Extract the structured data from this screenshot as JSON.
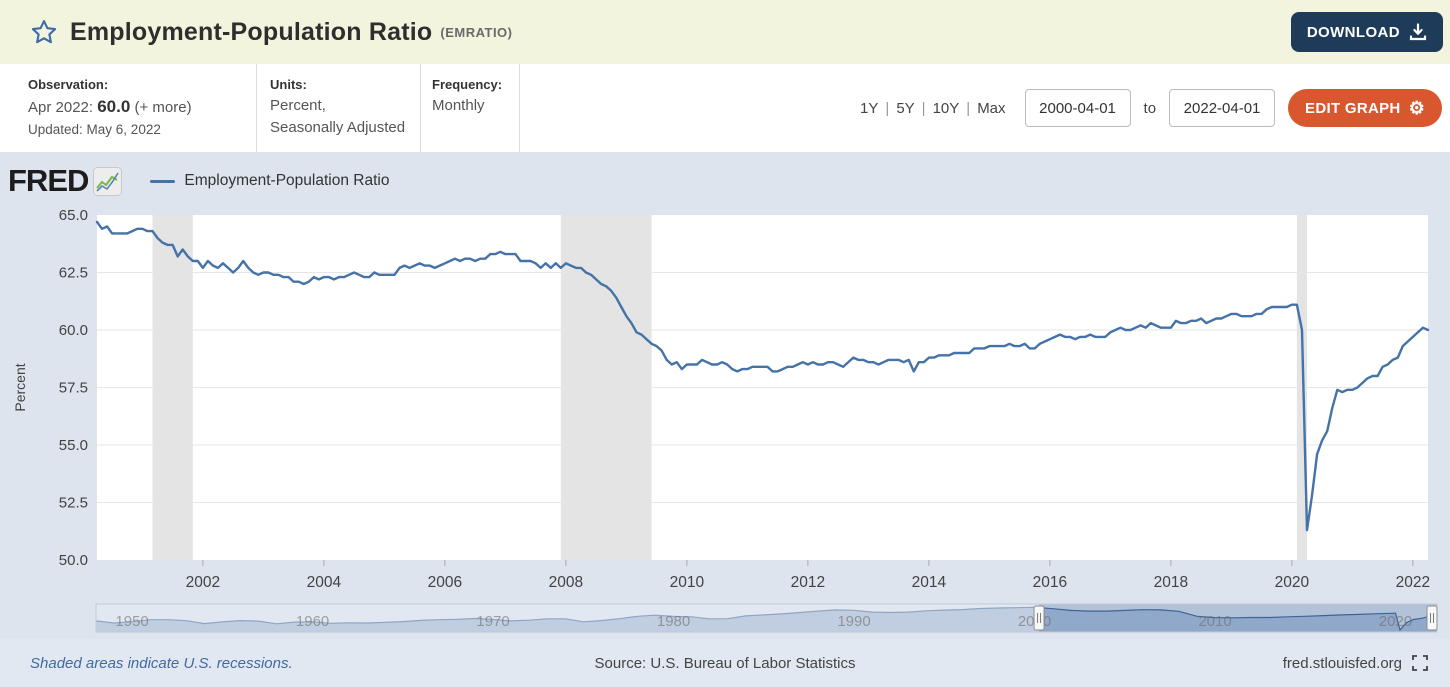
{
  "header": {
    "title": "Employment-Population Ratio",
    "series_code": "(EMRATIO)",
    "download_label": "DOWNLOAD"
  },
  "meta": {
    "observation": {
      "label": "Observation:",
      "date": "Apr 2022:",
      "value": "60.0",
      "more": "(+ more)",
      "updated": "Updated: May 6, 2022"
    },
    "units": {
      "label": "Units:",
      "line1": "Percent,",
      "line2": "Seasonally Adjusted"
    },
    "frequency": {
      "label": "Frequency:",
      "value": "Monthly"
    },
    "ranges": [
      "1Y",
      "5Y",
      "10Y",
      "Max"
    ],
    "range_separator": "|",
    "date_from": "2000-04-01",
    "to_label": "to",
    "date_to": "2022-04-01",
    "edit_graph_label": "EDIT GRAPH"
  },
  "brand": {
    "logo": "FRED",
    "legend_label": "Employment-Population Ratio"
  },
  "footer": {
    "note": "Shaded areas indicate U.S. recessions.",
    "source": "Source: U.S. Bureau of Labor Statistics",
    "site": "fred.stlouisfed.org"
  },
  "colors": {
    "header_bg": "#f2f4de",
    "download_navy": "#1e3c59",
    "edit_orange": "#d9572e",
    "chart_bg": "#dde4ee",
    "plot_bg": "#ffffff",
    "gridline": "#e6e6e6",
    "recession": "#e4e4e4",
    "series_line": "#4572a7",
    "axis_text": "#424242",
    "minimap_bg": "#cdd8e7",
    "minimap_selection_bg": "#b2c2d9",
    "minimap_area": "#8aa3c6",
    "minimap_line": "#3f6498"
  },
  "chart_data": {
    "type": "line",
    "title": "Employment-Population Ratio",
    "ylabel": "Percent",
    "ylim": [
      50.0,
      65.0
    ],
    "yticks": [
      65.0,
      62.5,
      60.0,
      57.5,
      55.0,
      52.5,
      50.0
    ],
    "xticks": [
      2002,
      2004,
      2006,
      2008,
      2010,
      2012,
      2014,
      2016,
      2018,
      2020,
      2022
    ],
    "x_range": [
      2000.25,
      2022.25
    ],
    "frequency": "monthly",
    "first_observation": "2000-04",
    "last_observation": "2022-04",
    "values": [
      64.7,
      64.4,
      64.5,
      64.2,
      64.2,
      64.2,
      64.2,
      64.3,
      64.4,
      64.4,
      64.3,
      64.3,
      64.0,
      63.8,
      63.7,
      63.7,
      63.2,
      63.5,
      63.2,
      63.0,
      63.0,
      62.7,
      63.0,
      62.8,
      62.7,
      62.9,
      62.7,
      62.5,
      62.7,
      63.0,
      62.7,
      62.5,
      62.4,
      62.5,
      62.5,
      62.4,
      62.4,
      62.3,
      62.3,
      62.1,
      62.1,
      62.0,
      62.1,
      62.3,
      62.2,
      62.3,
      62.3,
      62.2,
      62.3,
      62.3,
      62.4,
      62.5,
      62.4,
      62.3,
      62.3,
      62.5,
      62.4,
      62.4,
      62.4,
      62.4,
      62.7,
      62.8,
      62.7,
      62.8,
      62.9,
      62.8,
      62.8,
      62.7,
      62.8,
      62.9,
      63.0,
      63.1,
      63.0,
      63.1,
      63.1,
      63.0,
      63.1,
      63.1,
      63.3,
      63.3,
      63.4,
      63.3,
      63.3,
      63.3,
      63.0,
      63.0,
      63.0,
      62.9,
      62.7,
      62.9,
      62.7,
      62.9,
      62.7,
      62.9,
      62.8,
      62.7,
      62.7,
      62.5,
      62.4,
      62.2,
      62.0,
      61.9,
      61.7,
      61.4,
      61.0,
      60.6,
      60.3,
      59.9,
      59.8,
      59.6,
      59.4,
      59.3,
      59.1,
      58.7,
      58.5,
      58.6,
      58.3,
      58.5,
      58.5,
      58.5,
      58.7,
      58.6,
      58.5,
      58.5,
      58.6,
      58.5,
      58.3,
      58.2,
      58.3,
      58.3,
      58.4,
      58.4,
      58.4,
      58.4,
      58.2,
      58.2,
      58.3,
      58.4,
      58.4,
      58.5,
      58.6,
      58.5,
      58.6,
      58.5,
      58.5,
      58.6,
      58.6,
      58.5,
      58.4,
      58.6,
      58.8,
      58.7,
      58.7,
      58.6,
      58.6,
      58.5,
      58.6,
      58.7,
      58.7,
      58.7,
      58.6,
      58.7,
      58.2,
      58.6,
      58.6,
      58.8,
      58.8,
      58.9,
      58.9,
      58.9,
      59.0,
      59.0,
      59.0,
      59.0,
      59.2,
      59.2,
      59.2,
      59.3,
      59.3,
      59.3,
      59.3,
      59.4,
      59.3,
      59.3,
      59.4,
      59.2,
      59.2,
      59.4,
      59.5,
      59.6,
      59.7,
      59.8,
      59.7,
      59.7,
      59.6,
      59.7,
      59.7,
      59.8,
      59.7,
      59.7,
      59.7,
      59.9,
      60.0,
      60.1,
      60.0,
      60.0,
      60.1,
      60.2,
      60.1,
      60.3,
      60.2,
      60.1,
      60.1,
      60.1,
      60.4,
      60.3,
      60.3,
      60.4,
      60.4,
      60.5,
      60.3,
      60.4,
      60.5,
      60.5,
      60.6,
      60.7,
      60.7,
      60.6,
      60.6,
      60.6,
      60.7,
      60.7,
      60.9,
      61.0,
      61.0,
      61.0,
      61.0,
      61.1,
      61.1,
      60.0,
      51.3,
      52.8,
      54.6,
      55.2,
      55.6,
      56.6,
      57.4,
      57.3,
      57.4,
      57.4,
      57.5,
      57.7,
      57.9,
      58.0,
      58.0,
      58.4,
      58.5,
      58.7,
      58.8,
      59.3,
      59.5,
      59.7,
      59.9,
      60.1,
      60.0
    ],
    "recessions": [
      [
        2001.167,
        2001.833
      ],
      [
        2007.917,
        2009.417
      ],
      [
        2020.083,
        2020.25
      ]
    ],
    "minimap": {
      "x_range": [
        1948,
        2022.3
      ],
      "labels": [
        1950,
        1960,
        1970,
        1980,
        1990,
        2000,
        2010,
        2020
      ],
      "selection": [
        2000.25,
        2022.3
      ],
      "points": [
        [
          1948,
          56.6
        ],
        [
          1949,
          55.4
        ],
        [
          1950,
          56.1
        ],
        [
          1951,
          57.3
        ],
        [
          1952,
          57.3
        ],
        [
          1953,
          56.7
        ],
        [
          1954,
          55.0
        ],
        [
          1955,
          56.0
        ],
        [
          1956,
          56.8
        ],
        [
          1957,
          56.5
        ],
        [
          1958,
          54.9
        ],
        [
          1959,
          55.9
        ],
        [
          1960,
          56.1
        ],
        [
          1961,
          55.2
        ],
        [
          1962,
          55.5
        ],
        [
          1963,
          55.4
        ],
        [
          1964,
          55.7
        ],
        [
          1965,
          56.2
        ],
        [
          1966,
          56.9
        ],
        [
          1967,
          57.3
        ],
        [
          1968,
          57.5
        ],
        [
          1969,
          58.0
        ],
        [
          1970,
          57.4
        ],
        [
          1971,
          56.6
        ],
        [
          1972,
          57.0
        ],
        [
          1973,
          57.8
        ],
        [
          1974,
          57.8
        ],
        [
          1975,
          56.1
        ],
        [
          1976,
          56.8
        ],
        [
          1977,
          57.9
        ],
        [
          1978,
          59.3
        ],
        [
          1979,
          59.9
        ],
        [
          1980,
          59.2
        ],
        [
          1981,
          59.0
        ],
        [
          1982,
          57.8
        ],
        [
          1983,
          57.9
        ],
        [
          1984,
          59.5
        ],
        [
          1985,
          60.1
        ],
        [
          1986,
          60.7
        ],
        [
          1987,
          61.5
        ],
        [
          1988,
          62.3
        ],
        [
          1989,
          63.0
        ],
        [
          1990,
          62.8
        ],
        [
          1991,
          61.7
        ],
        [
          1992,
          61.5
        ],
        [
          1993,
          61.7
        ],
        [
          1994,
          62.5
        ],
        [
          1995,
          62.9
        ],
        [
          1996,
          63.2
        ],
        [
          1997,
          63.8
        ],
        [
          1998,
          64.1
        ],
        [
          1999,
          64.3
        ],
        [
          2000,
          64.5
        ],
        [
          2001,
          63.7
        ],
        [
          2002,
          62.7
        ],
        [
          2003,
          62.3
        ],
        [
          2004,
          62.3
        ],
        [
          2005,
          62.7
        ],
        [
          2006,
          63.1
        ],
        [
          2007,
          63.0
        ],
        [
          2008,
          62.2
        ],
        [
          2009,
          59.3
        ],
        [
          2010,
          58.5
        ],
        [
          2011,
          58.4
        ],
        [
          2012,
          58.6
        ],
        [
          2013,
          58.6
        ],
        [
          2014,
          59.0
        ],
        [
          2015,
          59.3
        ],
        [
          2016,
          59.7
        ],
        [
          2017,
          60.1
        ],
        [
          2018,
          60.4
        ],
        [
          2019,
          60.8
        ],
        [
          2020,
          61.1
        ],
        [
          2020.25,
          51.3
        ],
        [
          2020.6,
          55.5
        ],
        [
          2021,
          57.4
        ],
        [
          2021.5,
          58.2
        ],
        [
          2022,
          59.7
        ],
        [
          2022.3,
          60.0
        ]
      ]
    }
  }
}
